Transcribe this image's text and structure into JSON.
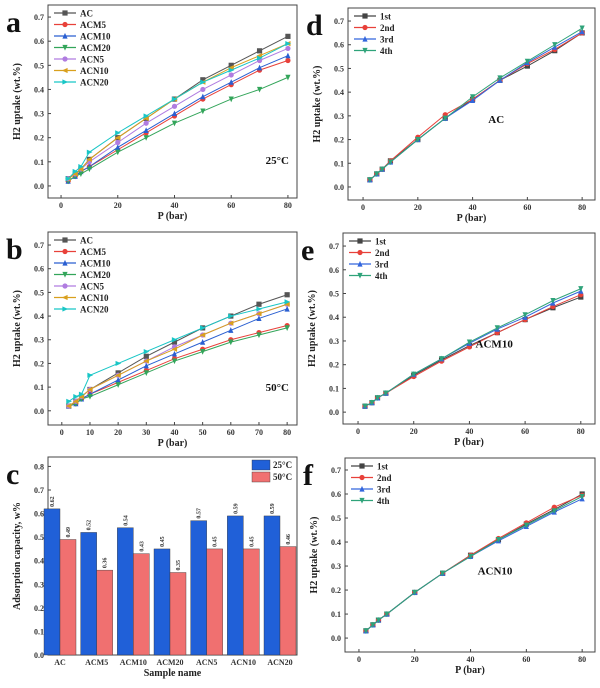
{
  "chart_data": [
    {
      "id": "a",
      "type": "line",
      "panel_letter": "a",
      "annotation": "25°C",
      "xlabel": "P (bar)",
      "ylabel": "H2 uptake (wt.%)",
      "xlim": [
        -4.6,
        83.2
      ],
      "ylim": [
        -0.05,
        0.75
      ],
      "xticks": [
        0,
        20,
        40,
        60,
        80
      ],
      "yticks": [
        0.0,
        0.1,
        0.2,
        0.3,
        0.4,
        0.5,
        0.6,
        0.7
      ],
      "legend": "top-left",
      "x": [
        2.5,
        5,
        7,
        10,
        20,
        30,
        40,
        50,
        60,
        70,
        80
      ],
      "series": [
        {
          "name": "AC",
          "color": "#555555",
          "marker": "square",
          "values": [
            0.03,
            0.05,
            0.07,
            0.11,
            0.2,
            0.28,
            0.36,
            0.44,
            0.5,
            0.56,
            0.62
          ]
        },
        {
          "name": "ACM5",
          "color": "#e8413a",
          "marker": "circle",
          "values": [
            0.02,
            0.04,
            0.06,
            0.08,
            0.15,
            0.22,
            0.29,
            0.36,
            0.42,
            0.48,
            0.52
          ]
        },
        {
          "name": "ACM10",
          "color": "#2a5fd1",
          "marker": "triangle-up",
          "values": [
            0.02,
            0.04,
            0.06,
            0.08,
            0.16,
            0.23,
            0.3,
            0.37,
            0.43,
            0.49,
            0.54
          ]
        },
        {
          "name": "ACM20",
          "color": "#33a55a",
          "marker": "triangle-down",
          "values": [
            0.02,
            0.04,
            0.05,
            0.07,
            0.14,
            0.2,
            0.26,
            0.31,
            0.36,
            0.4,
            0.45
          ]
        },
        {
          "name": "ACN5",
          "color": "#b07ce0",
          "marker": "circle",
          "values": [
            0.03,
            0.05,
            0.07,
            0.1,
            0.18,
            0.26,
            0.33,
            0.4,
            0.46,
            0.52,
            0.57
          ]
        },
        {
          "name": "ACN10",
          "color": "#d9a01e",
          "marker": "triangle-left",
          "values": [
            0.03,
            0.05,
            0.07,
            0.11,
            0.2,
            0.28,
            0.36,
            0.43,
            0.49,
            0.54,
            0.59
          ]
        },
        {
          "name": "ACN20",
          "color": "#19c6c6",
          "marker": "triangle-right",
          "values": [
            0.03,
            0.06,
            0.08,
            0.14,
            0.22,
            0.29,
            0.36,
            0.43,
            0.48,
            0.53,
            0.59
          ]
        }
      ]
    },
    {
      "id": "b",
      "type": "line",
      "panel_letter": "b",
      "annotation": "50°C",
      "xlabel": "P (bar)",
      "ylabel": "H2 uptake (wt.%)",
      "xlim": [
        -4.9,
        83.5
      ],
      "ylim": [
        -0.06,
        0.755
      ],
      "xticks": [
        0,
        10,
        20,
        30,
        40,
        50,
        60,
        70,
        80
      ],
      "yticks": [
        0.0,
        0.1,
        0.2,
        0.3,
        0.4,
        0.5,
        0.6,
        0.7
      ],
      "legend": "top-left",
      "x": [
        2.5,
        5,
        7,
        10,
        20,
        30,
        40,
        50,
        60,
        70,
        80
      ],
      "series": [
        {
          "name": "AC",
          "color": "#555555",
          "marker": "square",
          "values": [
            0.02,
            0.04,
            0.06,
            0.09,
            0.16,
            0.23,
            0.29,
            0.35,
            0.4,
            0.45,
            0.49
          ]
        },
        {
          "name": "ACM5",
          "color": "#e8413a",
          "marker": "circle",
          "values": [
            0.02,
            0.03,
            0.05,
            0.07,
            0.12,
            0.17,
            0.22,
            0.26,
            0.3,
            0.33,
            0.36
          ]
        },
        {
          "name": "ACM10",
          "color": "#2a5fd1",
          "marker": "triangle-up",
          "values": [
            0.02,
            0.03,
            0.05,
            0.07,
            0.13,
            0.19,
            0.24,
            0.29,
            0.34,
            0.39,
            0.43
          ]
        },
        {
          "name": "ACM20",
          "color": "#33a55a",
          "marker": "triangle-down",
          "values": [
            0.02,
            0.03,
            0.05,
            0.06,
            0.11,
            0.16,
            0.21,
            0.25,
            0.29,
            0.32,
            0.35
          ]
        },
        {
          "name": "ACN5",
          "color": "#b07ce0",
          "marker": "circle",
          "values": [
            0.02,
            0.04,
            0.06,
            0.09,
            0.15,
            0.21,
            0.27,
            0.32,
            0.37,
            0.41,
            0.45
          ]
        },
        {
          "name": "ACN10",
          "color": "#d9a01e",
          "marker": "triangle-left",
          "values": [
            0.02,
            0.04,
            0.06,
            0.09,
            0.15,
            0.21,
            0.26,
            0.32,
            0.37,
            0.41,
            0.45
          ]
        },
        {
          "name": "ACN20",
          "color": "#19c6c6",
          "marker": "triangle-right",
          "values": [
            0.04,
            0.06,
            0.07,
            0.15,
            0.2,
            0.25,
            0.3,
            0.35,
            0.4,
            0.43,
            0.46
          ]
        }
      ]
    },
    {
      "id": "c",
      "type": "bar",
      "panel_letter": "c",
      "xlabel": "Sample name",
      "ylabel": "Adsorption capacity, w%",
      "ylim": [
        0.0,
        0.84
      ],
      "yticks": [
        0.0,
        0.1,
        0.2,
        0.3,
        0.4,
        0.5,
        0.6,
        0.7,
        0.8
      ],
      "legend": "top-right",
      "categories": [
        "AC",
        "ACM5",
        "ACM10",
        "ACM20",
        "ACN5",
        "ACN10",
        "ACN20"
      ],
      "series": [
        {
          "name": "25°C",
          "color": "#2060d8",
          "values": [
            0.62,
            0.52,
            0.54,
            0.45,
            0.57,
            0.59,
            0.59
          ]
        },
        {
          "name": "50°C",
          "color": "#f07070",
          "values": [
            0.49,
            0.36,
            0.43,
            0.35,
            0.45,
            0.45,
            0.46
          ]
        }
      ]
    },
    {
      "id": "d",
      "type": "line",
      "panel_letter": "d",
      "annotation": "AC",
      "xlabel": "P (bar)",
      "ylabel": "H2 uptake (wt.%)",
      "xlim": [
        -5.5,
        84.7
      ],
      "ylim": [
        -0.055,
        0.755
      ],
      "xticks": [
        0,
        20,
        40,
        60,
        80
      ],
      "yticks": [
        0.0,
        0.1,
        0.2,
        0.3,
        0.4,
        0.5,
        0.6,
        0.7
      ],
      "legend": "top-left",
      "x": [
        2.5,
        5,
        7,
        10,
        20,
        30,
        40,
        50,
        60,
        70,
        80
      ],
      "series": [
        {
          "name": "1st",
          "color": "#444444",
          "marker": "square",
          "values": [
            0.03,
            0.055,
            0.075,
            0.11,
            0.2,
            0.29,
            0.37,
            0.45,
            0.51,
            0.575,
            0.65
          ]
        },
        {
          "name": "2nd",
          "color": "#e8413a",
          "marker": "circle",
          "values": [
            0.03,
            0.055,
            0.075,
            0.11,
            0.21,
            0.305,
            0.37,
            0.45,
            0.52,
            0.58,
            0.65
          ]
        },
        {
          "name": "3rd",
          "color": "#3366dd",
          "marker": "triangle-up",
          "values": [
            0.03,
            0.055,
            0.075,
            0.105,
            0.2,
            0.29,
            0.365,
            0.45,
            0.525,
            0.59,
            0.655
          ]
        },
        {
          "name": "4th",
          "color": "#2fa37a",
          "marker": "triangle-down",
          "values": [
            0.03,
            0.055,
            0.075,
            0.105,
            0.2,
            0.29,
            0.38,
            0.46,
            0.53,
            0.6,
            0.67
          ]
        }
      ]
    },
    {
      "id": "e",
      "type": "line",
      "panel_letter": "e",
      "annotation": "ACM10",
      "xlabel": "P (bar)",
      "ylabel": "H2 uptake (wt.%)",
      "xlim": [
        -5.4,
        85.1
      ],
      "ylim": [
        -0.05,
        0.755
      ],
      "xticks": [
        0,
        20,
        40,
        60,
        80
      ],
      "yticks": [
        0.0,
        0.1,
        0.2,
        0.3,
        0.4,
        0.5,
        0.6,
        0.7
      ],
      "legend": "top-left",
      "x": [
        2.5,
        5,
        7,
        10,
        20,
        30,
        40,
        50,
        60,
        70,
        80
      ],
      "series": [
        {
          "name": "1st",
          "color": "#444444",
          "marker": "square",
          "values": [
            0.025,
            0.04,
            0.06,
            0.08,
            0.155,
            0.22,
            0.28,
            0.335,
            0.39,
            0.44,
            0.485
          ]
        },
        {
          "name": "2nd",
          "color": "#e8413a",
          "marker": "circle",
          "values": [
            0.025,
            0.04,
            0.06,
            0.08,
            0.15,
            0.215,
            0.275,
            0.335,
            0.39,
            0.445,
            0.495
          ]
        },
        {
          "name": "3rd",
          "color": "#3366dd",
          "marker": "triangle-up",
          "values": [
            0.025,
            0.04,
            0.06,
            0.08,
            0.16,
            0.225,
            0.29,
            0.35,
            0.4,
            0.46,
            0.51
          ]
        },
        {
          "name": "4th",
          "color": "#2fa37a",
          "marker": "triangle-down",
          "values": [
            0.025,
            0.04,
            0.06,
            0.08,
            0.16,
            0.225,
            0.295,
            0.355,
            0.41,
            0.47,
            0.52
          ]
        }
      ]
    },
    {
      "id": "f",
      "type": "line",
      "panel_letter": "f",
      "annotation": "ACN10",
      "xlabel": "P (bar)",
      "ylabel": "H2 uptake (wt.%)",
      "xlim": [
        -5,
        84.6
      ],
      "ylim": [
        -0.058,
        0.75
      ],
      "xticks": [
        0,
        20,
        40,
        60,
        80
      ],
      "yticks": [
        0.0,
        0.1,
        0.2,
        0.3,
        0.4,
        0.5,
        0.6,
        0.7
      ],
      "legend": "top-left",
      "x": [
        2.5,
        5,
        7,
        10,
        20,
        30,
        40,
        50,
        60,
        70,
        80
      ],
      "series": [
        {
          "name": "1st",
          "color": "#444444",
          "marker": "square",
          "values": [
            0.03,
            0.055,
            0.075,
            0.1,
            0.19,
            0.27,
            0.345,
            0.41,
            0.475,
            0.535,
            0.6
          ]
        },
        {
          "name": "2nd",
          "color": "#e8413a",
          "marker": "circle",
          "values": [
            0.03,
            0.055,
            0.075,
            0.1,
            0.19,
            0.27,
            0.345,
            0.415,
            0.48,
            0.545,
            0.595
          ]
        },
        {
          "name": "3rd",
          "color": "#3366dd",
          "marker": "triangle-up",
          "values": [
            0.03,
            0.055,
            0.075,
            0.1,
            0.19,
            0.27,
            0.34,
            0.405,
            0.465,
            0.525,
            0.58
          ]
        },
        {
          "name": "4th",
          "color": "#2fa37a",
          "marker": "triangle-down",
          "values": [
            0.03,
            0.055,
            0.075,
            0.1,
            0.19,
            0.27,
            0.34,
            0.41,
            0.47,
            0.53,
            0.59
          ]
        }
      ]
    }
  ]
}
